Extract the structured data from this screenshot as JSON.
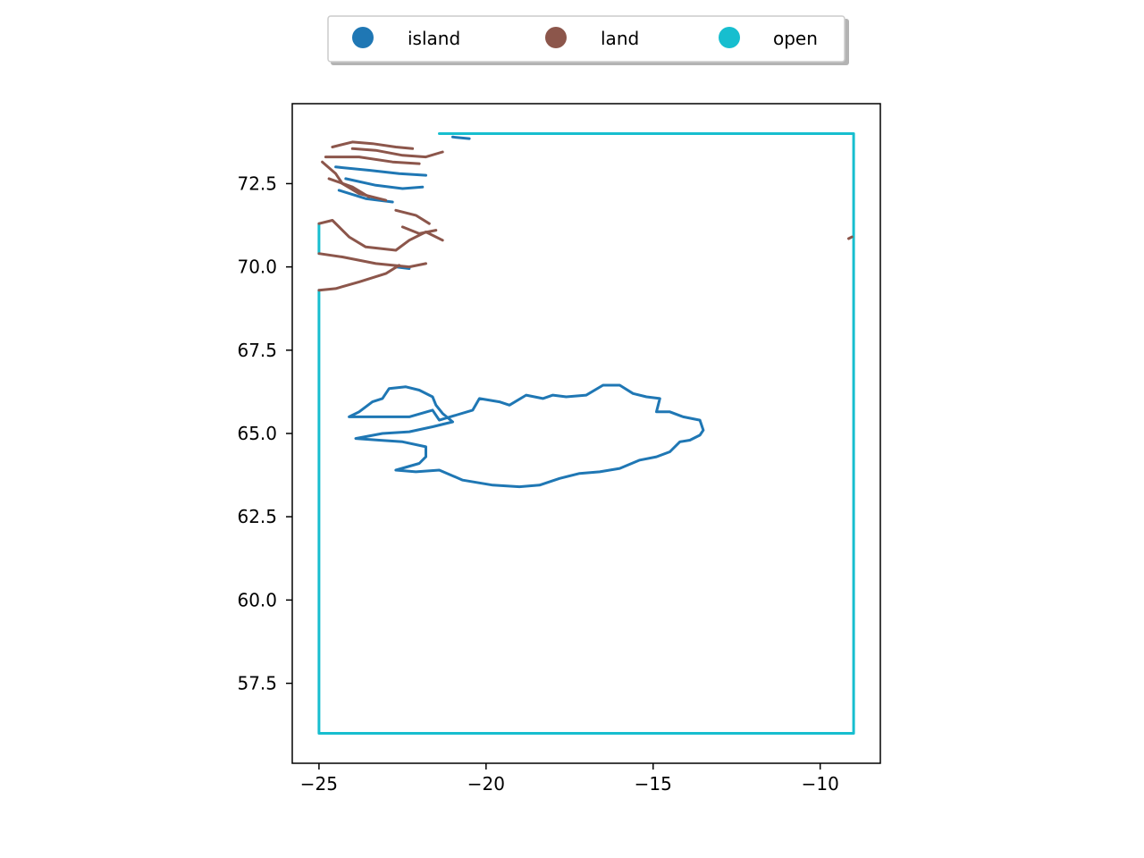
{
  "chart_data": {
    "type": "map",
    "title": "",
    "xlabel": "",
    "ylabel": "",
    "xlim": [
      -25.8,
      -8.2
    ],
    "ylim": [
      55.1,
      74.9
    ],
    "xticks": [
      -25,
      -20,
      -15,
      -10
    ],
    "xtick_labels": [
      "−25",
      "−20",
      "−15",
      "−10"
    ],
    "yticks": [
      57.5,
      60.0,
      62.5,
      65.0,
      67.5,
      70.0,
      72.5
    ],
    "ytick_labels": [
      "57.5",
      "60.0",
      "62.5",
      "65.0",
      "67.5",
      "70.0",
      "72.5"
    ],
    "grid": false,
    "legend": {
      "placement": "top-center, above plot",
      "columns": 3,
      "entries": [
        {
          "label": "island",
          "color": "#1f77b4"
        },
        {
          "label": "land",
          "color": "#8c564b"
        },
        {
          "label": "open",
          "color": "#17becf"
        }
      ]
    },
    "series": [
      {
        "name": "open",
        "color": "#17becf",
        "paths": [
          [
            [
              -21.4,
              74.0
            ],
            [
              -9.0,
              74.0
            ],
            [
              -9.0,
              56.0
            ],
            [
              -25.0,
              56.0
            ],
            [
              -25.0,
              69.3
            ]
          ],
          [
            [
              -25.0,
              70.4
            ],
            [
              -25.0,
              71.3
            ]
          ]
        ]
      },
      {
        "name": "island",
        "color": "#1f77b4",
        "paths": [
          [
            [
              -22.7,
              63.9
            ],
            [
              -22.1,
              63.85
            ],
            [
              -21.4,
              63.9
            ],
            [
              -20.7,
              63.6
            ],
            [
              -19.8,
              63.45
            ],
            [
              -19.0,
              63.4
            ],
            [
              -18.4,
              63.45
            ],
            [
              -17.8,
              63.65
            ],
            [
              -17.2,
              63.8
            ],
            [
              -16.6,
              63.85
            ],
            [
              -16.0,
              63.95
            ],
            [
              -15.4,
              64.2
            ],
            [
              -14.9,
              64.3
            ],
            [
              -14.5,
              64.45
            ],
            [
              -14.2,
              64.75
            ],
            [
              -13.9,
              64.8
            ],
            [
              -13.6,
              64.95
            ],
            [
              -13.5,
              65.1
            ],
            [
              -13.6,
              65.4
            ],
            [
              -14.1,
              65.5
            ],
            [
              -14.5,
              65.65
            ],
            [
              -14.9,
              65.65
            ],
            [
              -14.8,
              66.05
            ],
            [
              -15.2,
              66.1
            ],
            [
              -15.6,
              66.2
            ],
            [
              -16.0,
              66.45
            ],
            [
              -16.5,
              66.45
            ],
            [
              -17.0,
              66.15
            ],
            [
              -17.6,
              66.1
            ],
            [
              -18.0,
              66.15
            ],
            [
              -18.3,
              66.05
            ],
            [
              -18.8,
              66.15
            ],
            [
              -19.3,
              65.85
            ],
            [
              -19.6,
              65.95
            ],
            [
              -20.2,
              66.05
            ],
            [
              -20.4,
              65.7
            ],
            [
              -20.9,
              65.55
            ],
            [
              -21.4,
              65.4
            ],
            [
              -21.6,
              65.7
            ],
            [
              -22.3,
              65.5
            ],
            [
              -22.9,
              65.5
            ],
            [
              -23.6,
              65.5
            ],
            [
              -24.1,
              65.5
            ],
            [
              -23.8,
              65.65
            ],
            [
              -23.4,
              65.95
            ],
            [
              -23.1,
              66.05
            ],
            [
              -22.9,
              66.35
            ],
            [
              -22.4,
              66.4
            ],
            [
              -22.0,
              66.3
            ],
            [
              -21.6,
              66.1
            ],
            [
              -21.5,
              65.85
            ],
            [
              -21.3,
              65.6
            ],
            [
              -21.0,
              65.35
            ],
            [
              -21.6,
              65.2
            ],
            [
              -22.3,
              65.05
            ],
            [
              -23.1,
              65.0
            ],
            [
              -23.9,
              64.85
            ],
            [
              -23.2,
              64.8
            ],
            [
              -22.5,
              64.75
            ],
            [
              -21.8,
              64.6
            ],
            [
              -21.8,
              64.3
            ],
            [
              -22.0,
              64.1
            ],
            [
              -22.7,
              63.9
            ]
          ],
          [
            [
              -24.5,
              73.0
            ],
            [
              -23.5,
              72.9
            ],
            [
              -22.6,
              72.8
            ],
            [
              -21.8,
              72.75
            ]
          ],
          [
            [
              -24.2,
              72.65
            ],
            [
              -23.3,
              72.45
            ],
            [
              -22.5,
              72.35
            ],
            [
              -21.9,
              72.4
            ]
          ],
          [
            [
              -24.4,
              72.3
            ],
            [
              -23.6,
              72.05
            ],
            [
              -22.8,
              71.95
            ]
          ],
          [
            [
              -22.7,
              70.0
            ],
            [
              -22.3,
              69.95
            ]
          ],
          [
            [
              -21.0,
              73.9
            ],
            [
              -20.5,
              73.85
            ]
          ]
        ]
      },
      {
        "name": "land",
        "color": "#8c564b",
        "paths": [
          [
            [
              -24.6,
              73.6
            ],
            [
              -24.0,
              73.75
            ],
            [
              -23.4,
              73.7
            ],
            [
              -22.7,
              73.6
            ],
            [
              -22.2,
              73.55
            ]
          ],
          [
            [
              -24.0,
              73.55
            ],
            [
              -23.3,
              73.5
            ],
            [
              -22.5,
              73.35
            ],
            [
              -21.8,
              73.3
            ],
            [
              -21.3,
              73.45
            ]
          ],
          [
            [
              -24.8,
              73.3
            ],
            [
              -23.8,
              73.3
            ],
            [
              -22.8,
              73.15
            ],
            [
              -22.0,
              73.1
            ]
          ],
          [
            [
              -24.9,
              73.15
            ],
            [
              -24.5,
              72.8
            ],
            [
              -24.3,
              72.5
            ],
            [
              -23.8,
              72.2
            ],
            [
              -23.0,
              72.0
            ]
          ],
          [
            [
              -24.7,
              72.65
            ],
            [
              -24.0,
              72.4
            ],
            [
              -23.5,
              72.1
            ]
          ],
          [
            [
              -22.7,
              71.7
            ],
            [
              -22.1,
              71.55
            ],
            [
              -21.7,
              71.3
            ]
          ],
          [
            [
              -25.0,
              71.3
            ],
            [
              -24.6,
              71.4
            ],
            [
              -24.1,
              70.9
            ],
            [
              -23.6,
              70.6
            ],
            [
              -22.7,
              70.5
            ],
            [
              -22.3,
              70.8
            ],
            [
              -21.8,
              71.05
            ],
            [
              -21.3,
              70.8
            ]
          ],
          [
            [
              -22.5,
              71.2
            ],
            [
              -22.0,
              71.0
            ],
            [
              -21.5,
              71.1
            ]
          ],
          [
            [
              -25.0,
              70.4
            ],
            [
              -24.3,
              70.3
            ],
            [
              -23.3,
              70.1
            ],
            [
              -22.3,
              70.0
            ],
            [
              -21.8,
              70.1
            ]
          ],
          [
            [
              -25.0,
              69.3
            ],
            [
              -24.5,
              69.35
            ],
            [
              -23.8,
              69.55
            ],
            [
              -23.0,
              69.8
            ],
            [
              -22.6,
              70.05
            ]
          ],
          [
            [
              -9.05,
              70.9
            ],
            [
              -9.15,
              70.85
            ]
          ]
        ]
      }
    ]
  }
}
